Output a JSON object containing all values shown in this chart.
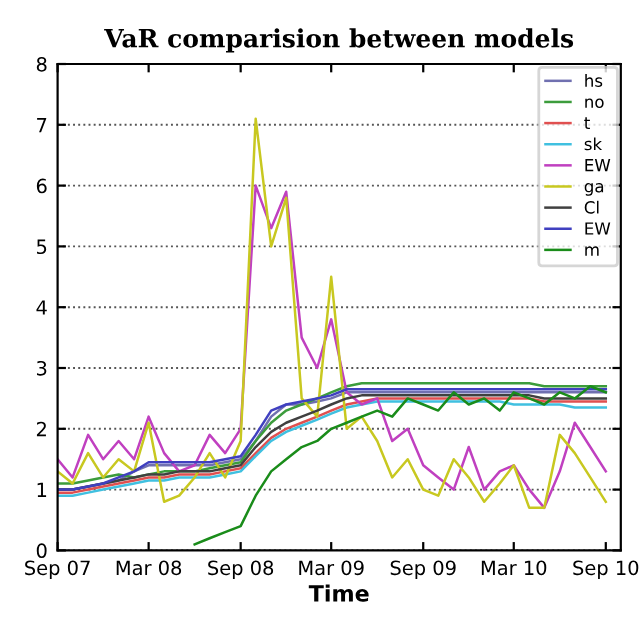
{
  "chart_data": {
    "type": "line",
    "title": "VaR comparision between models",
    "xlabel": "Time",
    "x": [
      "2007-09",
      "2007-10",
      "2007-11",
      "2007-12",
      "2008-01",
      "2008-02",
      "2008-03",
      "2008-04",
      "2008-05",
      "2008-06",
      "2008-07",
      "2008-08",
      "2008-09",
      "2008-10",
      "2008-11",
      "2008-12",
      "2009-01",
      "2009-02",
      "2009-03",
      "2009-04",
      "2009-05",
      "2009-06",
      "2009-07",
      "2009-08",
      "2009-09",
      "2009-10",
      "2009-11",
      "2009-12",
      "2010-01",
      "2010-02",
      "2010-03",
      "2010-04",
      "2010-05",
      "2010-06",
      "2010-07",
      "2010-08",
      "2010-09"
    ],
    "series": [
      {
        "name": "hs",
        "color": "#7070b0",
        "values": [
          1.0,
          1.0,
          1.05,
          1.1,
          1.15,
          1.3,
          1.4,
          1.4,
          1.4,
          1.4,
          1.4,
          1.45,
          1.5,
          1.8,
          2.2,
          2.4,
          2.4,
          2.45,
          2.5,
          2.6,
          2.6,
          2.6,
          2.6,
          2.6,
          2.6,
          2.6,
          2.6,
          2.6,
          2.6,
          2.6,
          2.6,
          2.6,
          2.6,
          2.6,
          2.6,
          2.6,
          2.6
        ]
      },
      {
        "name": "no",
        "color": "#3c9c3c",
        "values": [
          1.1,
          1.1,
          1.15,
          1.2,
          1.25,
          1.2,
          1.25,
          1.3,
          1.3,
          1.3,
          1.35,
          1.4,
          1.45,
          1.8,
          2.1,
          2.3,
          2.4,
          2.5,
          2.6,
          2.7,
          2.75,
          2.75,
          2.75,
          2.75,
          2.75,
          2.75,
          2.75,
          2.75,
          2.75,
          2.75,
          2.75,
          2.75,
          2.7,
          2.7,
          2.7,
          2.7,
          2.7
        ]
      },
      {
        "name": "t",
        "color": "#e05050",
        "values": [
          0.95,
          0.95,
          1.0,
          1.05,
          1.1,
          1.15,
          1.2,
          1.2,
          1.25,
          1.25,
          1.25,
          1.3,
          1.35,
          1.6,
          1.85,
          2.0,
          2.1,
          2.2,
          2.3,
          2.4,
          2.45,
          2.5,
          2.5,
          2.5,
          2.5,
          2.5,
          2.5,
          2.5,
          2.5,
          2.5,
          2.5,
          2.5,
          2.45,
          2.45,
          2.45,
          2.45,
          2.45
        ]
      },
      {
        "name": "sk",
        "color": "#40c0e0",
        "values": [
          0.9,
          0.9,
          0.95,
          1.0,
          1.05,
          1.1,
          1.15,
          1.15,
          1.2,
          1.2,
          1.2,
          1.25,
          1.3,
          1.55,
          1.8,
          1.95,
          2.05,
          2.15,
          2.25,
          2.35,
          2.4,
          2.45,
          2.45,
          2.45,
          2.45,
          2.45,
          2.45,
          2.45,
          2.45,
          2.45,
          2.4,
          2.4,
          2.4,
          2.4,
          2.35,
          2.35,
          2.35
        ]
      },
      {
        "name": "EW",
        "color": "#c040c0",
        "values": [
          1.5,
          1.2,
          1.9,
          1.5,
          1.8,
          1.5,
          2.2,
          1.6,
          1.3,
          1.4,
          1.9,
          1.6,
          2.0,
          6.0,
          5.3,
          5.9,
          3.5,
          3.0,
          3.8,
          2.6,
          2.4,
          2.5,
          1.8,
          2.0,
          1.4,
          1.2,
          1.0,
          1.7,
          1.0,
          1.3,
          1.4,
          1.0,
          0.7,
          1.3,
          2.1,
          1.7,
          1.3
        ]
      },
      {
        "name": "ga",
        "color": "#c8c820",
        "values": [
          1.3,
          1.1,
          1.6,
          1.2,
          1.5,
          1.3,
          2.1,
          0.8,
          0.9,
          1.2,
          1.6,
          1.2,
          1.8,
          7.1,
          5.0,
          5.8,
          2.5,
          2.2,
          4.5,
          2.0,
          2.2,
          1.8,
          1.2,
          1.5,
          1.0,
          0.9,
          1.5,
          1.2,
          0.8,
          1.1,
          1.4,
          0.7,
          0.7,
          1.9,
          1.6,
          1.2,
          0.8
        ]
      },
      {
        "name": "Cl",
        "color": "#404040",
        "values": [
          1.0,
          1.0,
          1.05,
          1.1,
          1.15,
          1.2,
          1.25,
          1.25,
          1.3,
          1.3,
          1.3,
          1.35,
          1.4,
          1.7,
          1.95,
          2.1,
          2.2,
          2.3,
          2.4,
          2.5,
          2.55,
          2.55,
          2.55,
          2.55,
          2.55,
          2.55,
          2.55,
          2.55,
          2.55,
          2.55,
          2.55,
          2.55,
          2.5,
          2.5,
          2.5,
          2.5,
          2.5
        ]
      },
      {
        "name": "EW",
        "color": "#4040c0",
        "values": [
          1.0,
          1.0,
          1.05,
          1.1,
          1.2,
          1.3,
          1.45,
          1.45,
          1.45,
          1.45,
          1.45,
          1.5,
          1.55,
          1.9,
          2.3,
          2.4,
          2.45,
          2.5,
          2.55,
          2.65,
          2.65,
          2.65,
          2.65,
          2.65,
          2.65,
          2.65,
          2.65,
          2.65,
          2.65,
          2.65,
          2.65,
          2.65,
          2.65,
          2.65,
          2.65,
          2.65,
          2.65
        ]
      },
      {
        "name": "m",
        "color": "#1a8c1a",
        "values": [
          null,
          null,
          null,
          null,
          null,
          null,
          null,
          null,
          null,
          0.1,
          0.2,
          0.3,
          0.4,
          0.9,
          1.3,
          1.5,
          1.7,
          1.8,
          2.0,
          2.1,
          2.2,
          2.3,
          2.2,
          2.5,
          2.4,
          2.3,
          2.6,
          2.4,
          2.5,
          2.3,
          2.6,
          2.5,
          2.4,
          2.6,
          2.5,
          2.7,
          2.6
        ]
      }
    ],
    "xlim": [
      "2007-09-01",
      "2010-10-01"
    ],
    "xticks": [
      {
        "value": "2007-09-01",
        "label": "Sep 07"
      },
      {
        "value": "2008-03-01",
        "label": "Mar 08"
      },
      {
        "value": "2008-09-01",
        "label": "Sep 08"
      },
      {
        "value": "2009-03-01",
        "label": "Mar 09"
      },
      {
        "value": "2009-09-01",
        "label": "Sep 09"
      },
      {
        "value": "2010-03-01",
        "label": "Mar 10"
      },
      {
        "value": "2010-09-01",
        "label": "Sep 10"
      }
    ],
    "ylim": [
      0,
      8
    ],
    "yticks": [
      0,
      1,
      2,
      3,
      4,
      5,
      6,
      7,
      8
    ],
    "grid": "y",
    "legend": "top right",
    "line_style": "solid",
    "marker": "none"
  }
}
